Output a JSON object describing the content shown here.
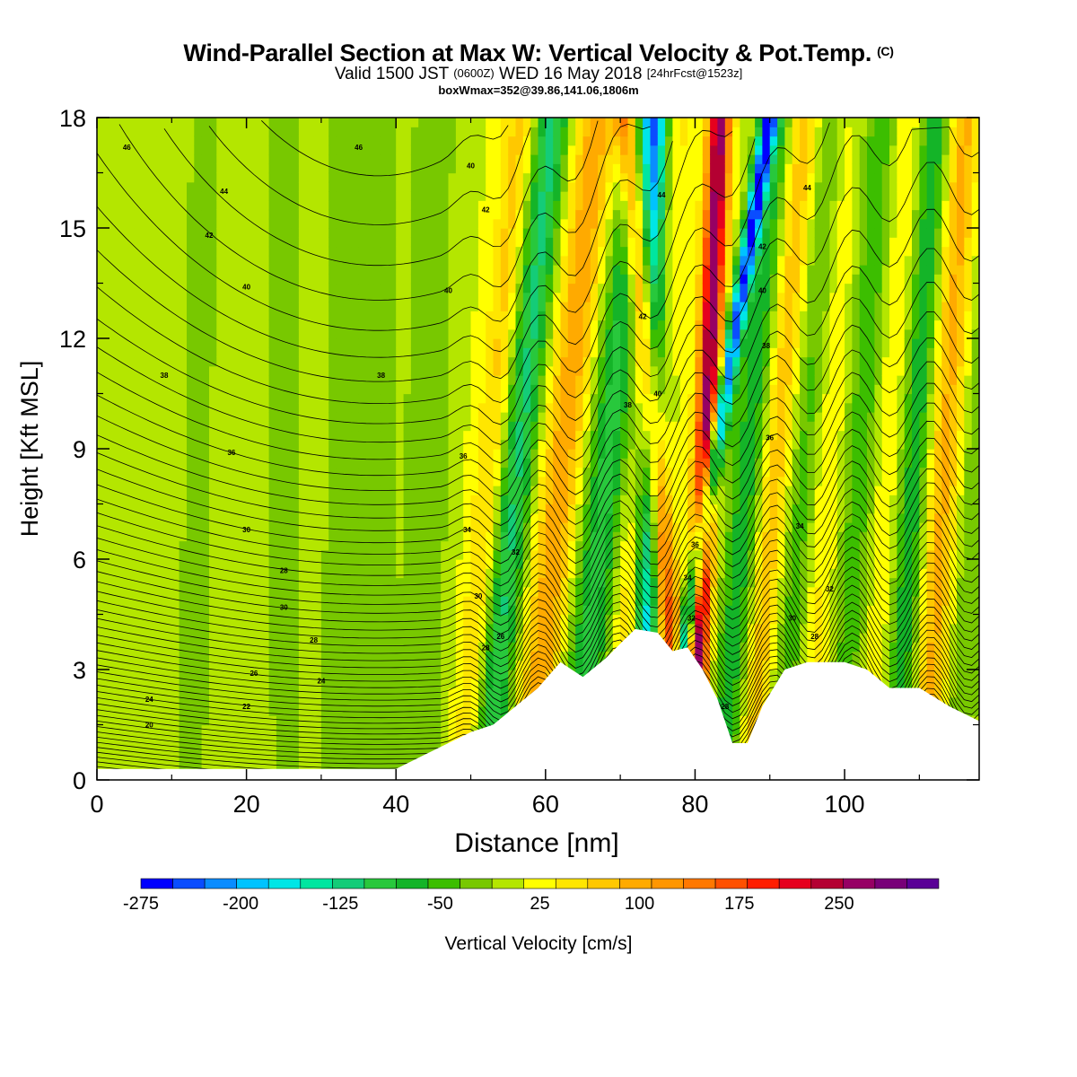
{
  "chart_data": {
    "type": "heatmap",
    "title": "Wind-Parallel Section at Max W: Vertical Velocity & Pot.Temp.",
    "title_mark": "(C)",
    "subtitle": {
      "prefix": "Valid 1500 JST",
      "utc": "(0600Z)",
      "date": "WED 16 May 2018",
      "forecast": "[24hrFcst@1523z]"
    },
    "annotation": "boxWmax=352@39.86,141.06,1806m",
    "xlabel": "Distance [nm]",
    "ylabel": "Height [Kft MSL]",
    "xlim": [
      0,
      118
    ],
    "ylim": [
      0,
      18
    ],
    "x_ticks": [
      "0",
      "20",
      "40",
      "60",
      "80",
      "100"
    ],
    "y_ticks": [
      "0",
      "3",
      "6",
      "9",
      "12",
      "15",
      "18"
    ],
    "colorbar": {
      "label": "Vertical Velocity [cm/s]",
      "tick_labels": [
        "-275",
        "-200",
        "-125",
        "-50",
        "25",
        "100",
        "175",
        "250"
      ],
      "tick_values": [
        -275,
        -200,
        -125,
        -50,
        25,
        100,
        175,
        250
      ],
      "range": [
        -275,
        325
      ],
      "colors": [
        "#0000ff",
        "#0a4dff",
        "#0a8cff",
        "#00c3ff",
        "#00e6e6",
        "#00e6a0",
        "#14cc78",
        "#28c83c",
        "#14b428",
        "#3cbe00",
        "#78c800",
        "#b4e600",
        "#ffff00",
        "#ffe600",
        "#ffc800",
        "#ffaa00",
        "#ff9600",
        "#ff7800",
        "#ff5000",
        "#ff1e00",
        "#e6001e",
        "#b40032",
        "#960064",
        "#780078",
        "#5a0096"
      ]
    },
    "terrain_kft": [
      [
        0,
        0.3
      ],
      [
        40,
        0.3
      ],
      [
        44,
        0.7
      ],
      [
        47,
        1.0
      ],
      [
        50,
        1.3
      ],
      [
        53,
        1.5
      ],
      [
        56,
        2.0
      ],
      [
        59,
        2.5
      ],
      [
        62,
        3.2
      ],
      [
        65,
        2.8
      ],
      [
        68,
        3.3
      ],
      [
        70,
        3.7
      ],
      [
        72,
        4.1
      ],
      [
        75,
        4.0
      ],
      [
        77,
        3.5
      ],
      [
        79,
        3.6
      ],
      [
        81,
        3.0
      ],
      [
        83,
        2.2
      ],
      [
        85,
        1.0
      ],
      [
        87,
        1.0
      ],
      [
        89,
        2.0
      ],
      [
        92,
        3.0
      ],
      [
        95,
        3.2
      ],
      [
        100,
        3.2
      ],
      [
        103,
        3.0
      ],
      [
        106,
        2.5
      ],
      [
        110,
        2.5
      ],
      [
        114,
        2.0
      ],
      [
        118,
        1.6
      ]
    ],
    "contour_labels": [
      {
        "text": "46",
        "x": 4,
        "y": 17.2
      },
      {
        "text": "46",
        "x": 35,
        "y": 17.2
      },
      {
        "text": "44",
        "x": 17,
        "y": 16.0
      },
      {
        "text": "42",
        "x": 15,
        "y": 14.8
      },
      {
        "text": "40",
        "x": 20,
        "y": 13.4
      },
      {
        "text": "38",
        "x": 9,
        "y": 11.0
      },
      {
        "text": "38",
        "x": 38,
        "y": 11.0
      },
      {
        "text": "36",
        "x": 18,
        "y": 8.9
      },
      {
        "text": "30",
        "x": 20,
        "y": 6.8
      },
      {
        "text": "28",
        "x": 25,
        "y": 5.7
      },
      {
        "text": "30",
        "x": 25,
        "y": 4.7
      },
      {
        "text": "28",
        "x": 29,
        "y": 3.8
      },
      {
        "text": "26",
        "x": 21,
        "y": 2.9
      },
      {
        "text": "24",
        "x": 30,
        "y": 2.7
      },
      {
        "text": "24",
        "x": 7,
        "y": 2.2
      },
      {
        "text": "22",
        "x": 20,
        "y": 2.0
      },
      {
        "text": "20",
        "x": 7,
        "y": 1.5
      },
      {
        "text": "40",
        "x": 50,
        "y": 16.7
      },
      {
        "text": "42",
        "x": 52,
        "y": 15.5
      },
      {
        "text": "40",
        "x": 47,
        "y": 13.3
      },
      {
        "text": "38",
        "x": 71,
        "y": 10.2
      },
      {
        "text": "40",
        "x": 75,
        "y": 10.5
      },
      {
        "text": "42",
        "x": 73,
        "y": 12.6
      },
      {
        "text": "44",
        "x": 75.5,
        "y": 15.9
      },
      {
        "text": "36",
        "x": 49,
        "y": 8.8
      },
      {
        "text": "34",
        "x": 49.5,
        "y": 6.8
      },
      {
        "text": "32",
        "x": 56,
        "y": 6.2
      },
      {
        "text": "30",
        "x": 51,
        "y": 5.0
      },
      {
        "text": "28",
        "x": 52,
        "y": 3.6
      },
      {
        "text": "26",
        "x": 54,
        "y": 3.9
      },
      {
        "text": "36",
        "x": 80,
        "y": 6.4
      },
      {
        "text": "34",
        "x": 79,
        "y": 5.5
      },
      {
        "text": "32",
        "x": 79.5,
        "y": 4.4
      },
      {
        "text": "28",
        "x": 84,
        "y": 2.0
      },
      {
        "text": "44",
        "x": 95,
        "y": 16.1
      },
      {
        "text": "42",
        "x": 89,
        "y": 14.5
      },
      {
        "text": "40",
        "x": 89,
        "y": 13.3
      },
      {
        "text": "38",
        "x": 89.5,
        "y": 11.8
      },
      {
        "text": "36",
        "x": 90,
        "y": 9.3
      },
      {
        "text": "34",
        "x": 94,
        "y": 6.9
      },
      {
        "text": "32",
        "x": 98,
        "y": 5.2
      },
      {
        "text": "30",
        "x": 93,
        "y": 4.4
      },
      {
        "text": "28",
        "x": 96,
        "y": 3.9
      }
    ]
  }
}
